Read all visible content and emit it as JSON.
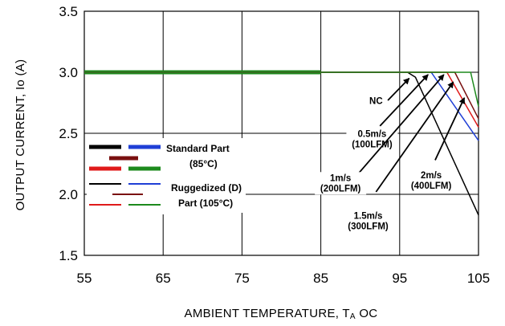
{
  "chart_data": {
    "type": "line",
    "xlabel": "AMBIENT TEMPERATURE, T",
    "xlabel_sub": "A",
    "xlabel_unit": "OC",
    "ylabel": "OUTPUT CURRENT, Io  (A)",
    "xlim": [
      55,
      105
    ],
    "ylim": [
      1.5,
      3.5
    ],
    "x_ticks": [
      "55",
      "65",
      "75",
      "85",
      "95",
      "105"
    ],
    "y_ticks": [
      "1.5",
      "2.0",
      "2.5",
      "3.0",
      "3.5"
    ],
    "grid": true,
    "series": [
      {
        "group": "Standard Part (85°C)",
        "color": "#000000",
        "width": 4,
        "x": [
          55,
          85
        ],
        "y": [
          3.0,
          3.0
        ]
      },
      {
        "group": "Standard Part (85°C)",
        "color": "#1f3fd6",
        "width": 4,
        "x": [
          55,
          85
        ],
        "y": [
          3.0,
          3.0
        ]
      },
      {
        "group": "Standard Part (85°C)",
        "color": "#e01a1a",
        "width": 4,
        "x": [
          55,
          85
        ],
        "y": [
          3.0,
          3.0
        ]
      },
      {
        "group": "Standard Part (85°C)",
        "color": "#7a1010",
        "width": 4,
        "x": [
          55,
          85
        ],
        "y": [
          3.0,
          3.0
        ]
      },
      {
        "group": "Standard Part (85°C)",
        "color": "#1d8a1d",
        "width": 5,
        "x": [
          55,
          85
        ],
        "y": [
          3.0,
          3.0
        ]
      },
      {
        "group": "Ruggedized (D) Part (105°C)",
        "color": "#000000",
        "width": 1.5,
        "x": [
          55,
          96,
          97,
          105
        ],
        "y": [
          3.0,
          3.0,
          2.96,
          1.83
        ]
      },
      {
        "group": "Ruggedized (D) Part (105°C)",
        "color": "#1f3fd6",
        "width": 1.5,
        "x": [
          55,
          99,
          105
        ],
        "y": [
          3.0,
          3.0,
          2.44
        ]
      },
      {
        "group": "Ruggedized (D) Part (105°C)",
        "color": "#e01a1a",
        "width": 1.5,
        "x": [
          55,
          101,
          105
        ],
        "y": [
          3.0,
          3.0,
          2.55
        ]
      },
      {
        "group": "Ruggedized (D) Part (105°C)",
        "color": "#7a1010",
        "width": 1.5,
        "x": [
          55,
          102,
          105
        ],
        "y": [
          3.0,
          3.0,
          2.62
        ]
      },
      {
        "group": "Ruggedized (D) Part (105°C)",
        "color": "#1d8a1d",
        "width": 1.5,
        "x": [
          55,
          104,
          105
        ],
        "y": [
          3.0,
          3.0,
          2.72
        ]
      }
    ],
    "legend": {
      "standard_label_1": "Standard Part",
      "standard_label_2": "(85°C)",
      "ruggedized_label_1": "Ruggedized (D)",
      "ruggedized_label_2": "Part (105°C)",
      "colors": [
        "#000000",
        "#1f3fd6",
        "#7a1010",
        "#e01a1a",
        "#1d8a1d"
      ]
    },
    "annotations": [
      {
        "lines": [
          "NC"
        ],
        "text_at": [
          92.0,
          2.74
        ],
        "arrow_from": [
          93.5,
          2.77
        ],
        "arrow_to": [
          96.2,
          2.95
        ]
      },
      {
        "lines": [
          "0.5m/s",
          "(100LFM)"
        ],
        "text_at": [
          91.5,
          2.47
        ],
        "arrow_from": [
          92.5,
          2.56
        ],
        "arrow_to": [
          98.6,
          2.98
        ]
      },
      {
        "lines": [
          "1m/s",
          "(200LFM)"
        ],
        "text_at": [
          87.5,
          2.11
        ],
        "arrow_from": [
          89.5,
          2.15
        ],
        "arrow_to": [
          100.6,
          2.98
        ]
      },
      {
        "lines": [
          "1.5m/s",
          "(300LFM)"
        ],
        "text_at": [
          91.0,
          1.8
        ],
        "arrow_from": [
          92.0,
          2.02
        ],
        "arrow_to": [
          101.8,
          2.92
        ]
      },
      {
        "lines": [
          "2m/s",
          "(400LFM)"
        ],
        "text_at": [
          99.0,
          2.13
        ],
        "arrow_from": [
          99.5,
          2.28
        ],
        "arrow_to": [
          103.2,
          2.79
        ]
      }
    ]
  }
}
